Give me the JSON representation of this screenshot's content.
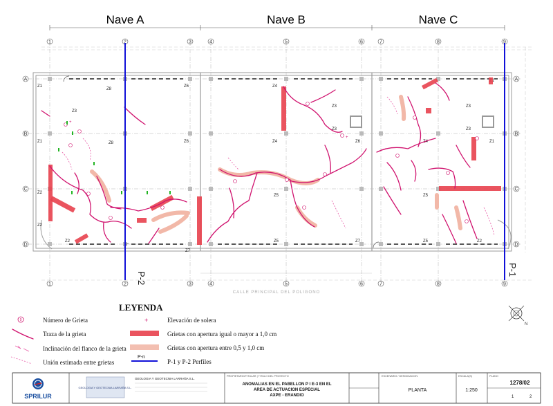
{
  "naves": [
    {
      "label": "Nave A"
    },
    {
      "label": "Nave B"
    },
    {
      "label": "Nave C"
    }
  ],
  "axes": {
    "numbers_top": [
      "1",
      "2",
      "3",
      "4",
      "5",
      "6",
      "7",
      "8",
      "9"
    ],
    "numbers_bottom": [
      "1",
      "2",
      "3",
      "4",
      "5",
      "6",
      "7",
      "8",
      "9"
    ],
    "letters_left": [
      "A",
      "B",
      "C",
      "D"
    ],
    "letters_right": [
      "A",
      "B",
      "C",
      "D"
    ]
  },
  "profiles": {
    "p1": "P-1",
    "p2": "P-2"
  },
  "street": "CALLE PRINCIPAL DEL POLIGONO",
  "zones": [
    "Z1",
    "Z2",
    "Z3",
    "Z4",
    "Z5",
    "Z6",
    "Z7",
    "Z8"
  ],
  "legend": {
    "title": "LEYENDA",
    "items": [
      {
        "label": "Número de Grieta"
      },
      {
        "label": "Traza de la grieta"
      },
      {
        "label": "Inclinación del flanco de la grieta"
      },
      {
        "label": "Unión estimada entre grietas"
      },
      {
        "label": "Elevación de solera"
      },
      {
        "label": "Grietas con apertura igual o mayor a 1,0 cm"
      },
      {
        "label": "Grietas con apertura entre 0,5 y 1,0 cm"
      },
      {
        "label": "P-1 y P-2 Perfiles"
      }
    ],
    "profile_sample": "P-n",
    "crack_number_sample": "9"
  },
  "title_block": {
    "logo_text": "SPRILUR",
    "company_box_text": "GEOLOGIA Y GEOTECNIA LARRAÑA S.L.",
    "company_name": "GEOLOGIA Y GEOTECNIA LARRAÑA S.L.",
    "project_header": "PROPIETARIO/TITULAR  |  TITULO DEL PROYECTO",
    "project_title_1": "ANOMALIAS EN EL PABELLON P I E-3 EN EL",
    "project_title_2": "AREA DE ACTUACION ESPECIAL",
    "project_title_3": "AXPE - ERANDIO",
    "designation_header": "ESCENARIO / DESIGNACION",
    "designation": "PLANTA",
    "scale_header": "ESCALA(S)",
    "scale": "1:250",
    "plan_header": "PLANO",
    "plan_number": "1278/02",
    "sheet": "1",
    "sheet_total": "2",
    "compass_letter": "N"
  },
  "colors": {
    "crack": "#d0126e",
    "wide_crack": "#e8414e",
    "mid_crack": "#f2b8a8",
    "profile": "#1010d8"
  }
}
